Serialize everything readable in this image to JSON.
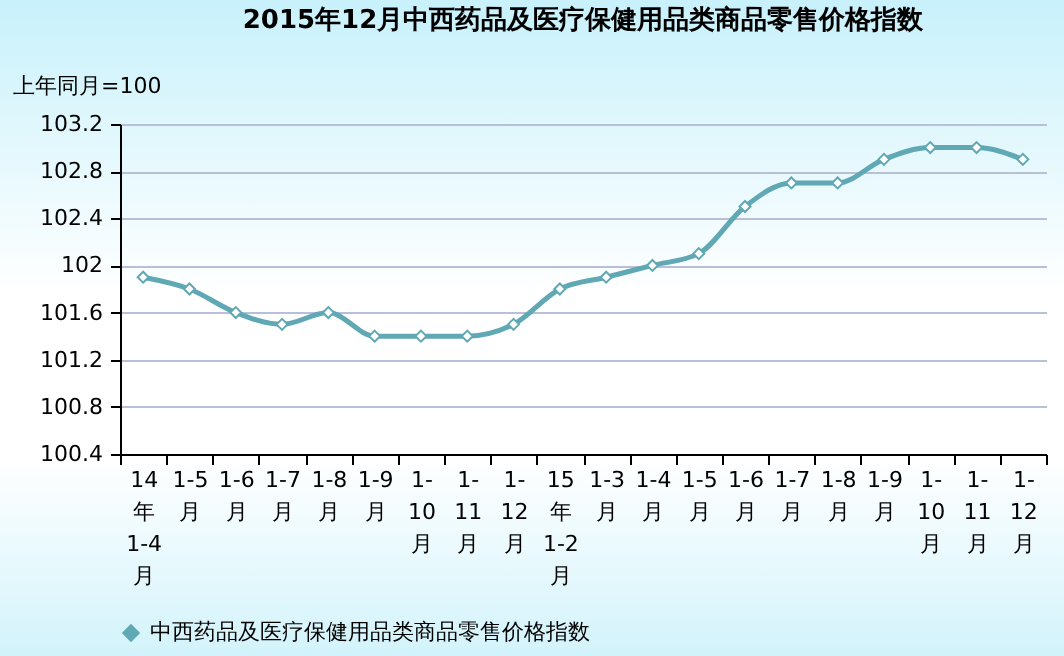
{
  "chart_data": {
    "type": "line",
    "title": "2015年12月中西药品及医疗保健用品类商品零售价格指数",
    "ylabel": "上年同月=100",
    "categories": [
      "14年1-4月",
      "1-5月",
      "1-6月",
      "1-7月",
      "1-8月",
      "1-9月",
      "1-10月",
      "1-11月",
      "1-12月",
      "15年1-2月",
      "1-3月",
      "1-4月",
      "1-5月",
      "1-6月",
      "1-7月",
      "1-8月",
      "1-9月",
      "1-10月",
      "1-11月",
      "1-12月"
    ],
    "series": [
      {
        "name": "中西药品及医疗保健用品类商品零售价格指数",
        "color": "#5fa8b4",
        "values": [
          101.9,
          101.8,
          101.6,
          101.5,
          101.6,
          101.4,
          101.4,
          101.4,
          101.5,
          101.8,
          101.9,
          102.0,
          102.1,
          102.5,
          102.7,
          102.7,
          102.9,
          103.0,
          103.0,
          102.9
        ]
      }
    ],
    "ylim": [
      100.4,
      103.2
    ],
    "yticks": [
      100.4,
      100.8,
      101.2,
      101.6,
      102,
      102.4,
      102.8,
      103.2
    ],
    "grid": "y",
    "legend": "bottom",
    "marker": "diamond",
    "line_style": "solid"
  }
}
